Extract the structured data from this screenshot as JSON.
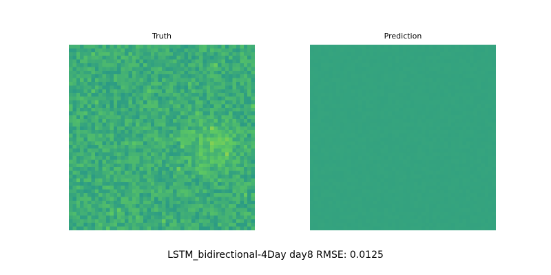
{
  "chart_data": {
    "type": "heatmap",
    "suptitle": "LSTM_bidirectional-4Day day8 RMSE: 0.0125",
    "colormap": "viridis",
    "panels": [
      {
        "title": "Truth",
        "grid_size": 50,
        "description_level": "mostly mid green-teal with scattered yellow-green patches, brightest cluster in center-right",
        "base_value": 0.62,
        "variation": 0.08
      },
      {
        "title": "Prediction",
        "grid_size": 50,
        "base_value": 0.58,
        "variation": 0.005
      }
    ]
  }
}
